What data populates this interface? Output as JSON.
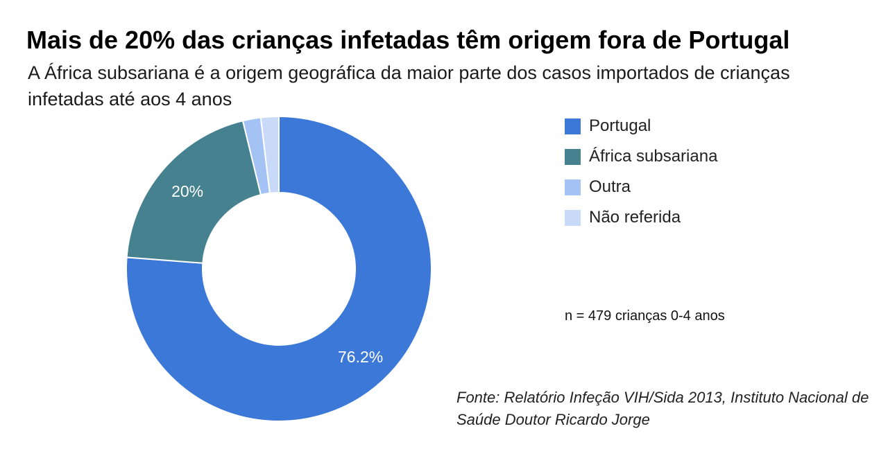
{
  "chart_data": {
    "type": "pie",
    "title": "Mais de 20% das crianças infetadas têm origem fora de Portugal",
    "subtitle": "A África subsariana é a origem geográfica da maior parte dos casos importados de crianças infetadas até aos 4 anos",
    "categories": [
      "Portugal",
      "África subsariana",
      "Outra",
      "Não referida"
    ],
    "values": [
      76.2,
      20.0,
      1.9,
      1.9
    ],
    "data_labels": [
      "76.2%",
      "20%",
      "",
      ""
    ],
    "colors": [
      "#3c78d8",
      "#45818e",
      "#a4c2f4",
      "#c9daf8"
    ],
    "donut": true,
    "legend_position": "right",
    "annotation": "n = 479 crianças 0-4 anos",
    "source": "Fonte: Relatório Infeção VIH/Sida 2013, Instituto Nacional de Saúde Doutor Ricardo Jorge"
  }
}
